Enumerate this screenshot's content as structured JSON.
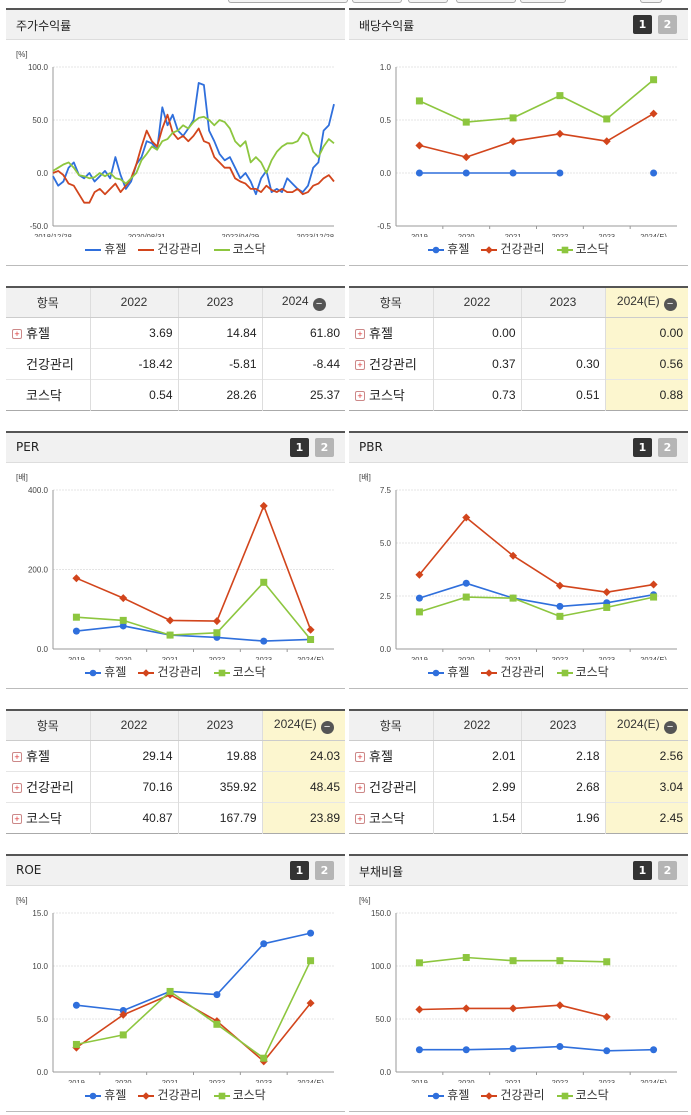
{
  "colors": {
    "휴젤": "#2f6fdc",
    "건강관리": "#d2451c",
    "코스닥": "#8dc63f"
  },
  "legend": [
    "휴젤",
    "건강관리",
    "코스닥"
  ],
  "buttons": [
    "1",
    "2"
  ],
  "stock": {
    "title": "주가수익률",
    "chart_data": {
      "type": "line",
      "ylabel": "[%]",
      "ylim": [
        -50,
        100
      ],
      "yticks": [
        "100.0",
        "50.0",
        "0.0",
        "-50.0"
      ],
      "xticks": [
        "2018/12/28",
        "2020/08/31",
        "2022/04/29",
        "2023/12/28"
      ],
      "series": [
        {
          "name": "휴젤",
          "values": [
            -3,
            -12,
            -8,
            5,
            10,
            -2,
            -5,
            0,
            -8,
            -3,
            2,
            -5,
            15,
            -2,
            -15,
            -8,
            8,
            15,
            30,
            28,
            22,
            62,
            45,
            55,
            40,
            35,
            42,
            50,
            85,
            83,
            40,
            30,
            18,
            12,
            15,
            5,
            -5,
            0,
            -8,
            -20,
            -5,
            2,
            -18,
            -15,
            -18,
            -5,
            -10,
            -15,
            -18,
            -12,
            5,
            10,
            40,
            45,
            65
          ]
        },
        {
          "name": "건강관리",
          "values": [
            0,
            2,
            -2,
            -10,
            -12,
            -20,
            -28,
            -28,
            -18,
            -15,
            -20,
            -15,
            -10,
            -18,
            -12,
            -5,
            8,
            25,
            40,
            30,
            25,
            42,
            55,
            38,
            32,
            35,
            30,
            35,
            42,
            30,
            28,
            15,
            10,
            5,
            5,
            -5,
            -8,
            -10,
            -15,
            -15,
            -18,
            -12,
            -16,
            -18,
            -15,
            -18,
            -18,
            -15,
            -20,
            -18,
            -12,
            -10,
            -5,
            -2,
            -8
          ]
        },
        {
          "name": "코스닥",
          "values": [
            2,
            5,
            8,
            10,
            5,
            -2,
            -3,
            -5,
            -4,
            0,
            -3,
            0,
            -5,
            -6,
            -10,
            -5,
            0,
            12,
            18,
            25,
            22,
            30,
            32,
            38,
            40,
            45,
            42,
            48,
            52,
            53,
            50,
            45,
            50,
            48,
            42,
            30,
            25,
            30,
            10,
            15,
            10,
            0,
            12,
            20,
            25,
            28,
            28,
            30,
            38,
            35,
            20,
            15,
            25,
            32,
            28
          ]
        }
      ]
    }
  },
  "stock_table": {
    "header": [
      "항목",
      "2022",
      "2023",
      "2024"
    ],
    "rows": [
      {
        "name": "휴젤",
        "values": [
          "3.69",
          "14.84",
          "61.80"
        ],
        "plus": true
      },
      {
        "name": "건강관리",
        "values": [
          "-18.42",
          "-5.81",
          "-8.44"
        ],
        "plus": false
      },
      {
        "name": "코스닥",
        "values": [
          "0.54",
          "28.26",
          "25.37"
        ],
        "plus": false
      }
    ]
  },
  "dividend": {
    "title": "배당수익률",
    "chart_data": {
      "type": "line",
      "ylabel": "",
      "ylim": [
        -0.5,
        1.0
      ],
      "yticks": [
        "1.0",
        "0.5",
        "0.0",
        "-0.5"
      ],
      "categories": [
        "2019",
        "2020",
        "2021",
        "2022",
        "2023",
        "2024(E)"
      ],
      "series": [
        {
          "name": "휴젤",
          "values": [
            0.0,
            0.0,
            0.0,
            0.0,
            null,
            0.0
          ]
        },
        {
          "name": "건강관리",
          "values": [
            0.26,
            0.15,
            0.3,
            0.37,
            0.3,
            0.56
          ]
        },
        {
          "name": "코스닥",
          "values": [
            0.68,
            0.48,
            0.52,
            0.73,
            0.51,
            0.88
          ]
        }
      ]
    }
  },
  "dividend_table": {
    "header": [
      "항목",
      "2022",
      "2023",
      "2024(E)"
    ],
    "rows": [
      {
        "name": "휴젤",
        "values": [
          "0.00",
          "",
          "0.00"
        ],
        "plus": true
      },
      {
        "name": "건강관리",
        "values": [
          "0.37",
          "0.30",
          "0.56"
        ],
        "plus": true
      },
      {
        "name": "코스닥",
        "values": [
          "0.73",
          "0.51",
          "0.88"
        ],
        "plus": true
      }
    ]
  },
  "per": {
    "title": "PER",
    "chart_data": {
      "type": "line",
      "ylabel": "[배]",
      "ylim": [
        0,
        400
      ],
      "yticks": [
        "400.0",
        "200.0",
        "0.0"
      ],
      "categories": [
        "2019",
        "2020",
        "2021",
        "2022",
        "2023",
        "2024(E)"
      ],
      "series": [
        {
          "name": "휴젤",
          "values": [
            45,
            58,
            35,
            29.14,
            19.88,
            24.03
          ]
        },
        {
          "name": "건강관리",
          "values": [
            178,
            128,
            72,
            70.16,
            359.92,
            48.45
          ]
        },
        {
          "name": "코스닥",
          "values": [
            80,
            72,
            35,
            40.87,
            167.79,
            23.89
          ]
        }
      ]
    }
  },
  "per_table": {
    "header": [
      "항목",
      "2022",
      "2023",
      "2024(E)"
    ],
    "rows": [
      {
        "name": "휴젤",
        "values": [
          "29.14",
          "19.88",
          "24.03"
        ],
        "plus": true
      },
      {
        "name": "건강관리",
        "values": [
          "70.16",
          "359.92",
          "48.45"
        ],
        "plus": true
      },
      {
        "name": "코스닥",
        "values": [
          "40.87",
          "167.79",
          "23.89"
        ],
        "plus": true
      }
    ]
  },
  "pbr": {
    "title": "PBR",
    "chart_data": {
      "type": "line",
      "ylabel": "[배]",
      "ylim": [
        0,
        7.5
      ],
      "yticks": [
        "7.5",
        "5.0",
        "2.5",
        "0.0"
      ],
      "categories": [
        "2019",
        "2020",
        "2021",
        "2022",
        "2023",
        "2024(E)"
      ],
      "series": [
        {
          "name": "휴젤",
          "values": [
            2.4,
            3.1,
            2.4,
            2.01,
            2.18,
            2.56
          ]
        },
        {
          "name": "건강관리",
          "values": [
            3.5,
            6.2,
            4.4,
            2.99,
            2.68,
            3.04
          ]
        },
        {
          "name": "코스닥",
          "values": [
            1.75,
            2.45,
            2.4,
            1.54,
            1.96,
            2.45
          ]
        }
      ]
    }
  },
  "pbr_table": {
    "header": [
      "항목",
      "2022",
      "2023",
      "2024(E)"
    ],
    "rows": [
      {
        "name": "휴젤",
        "values": [
          "2.01",
          "2.18",
          "2.56"
        ],
        "plus": true
      },
      {
        "name": "건강관리",
        "values": [
          "2.99",
          "2.68",
          "3.04"
        ],
        "plus": true
      },
      {
        "name": "코스닥",
        "values": [
          "1.54",
          "1.96",
          "2.45"
        ],
        "plus": true
      }
    ]
  },
  "roe": {
    "title": "ROE",
    "chart_data": {
      "type": "line",
      "ylabel": "[%]",
      "ylim": [
        0,
        15
      ],
      "yticks": [
        "15.0",
        "10.0",
        "5.0",
        "0.0"
      ],
      "categories": [
        "2019",
        "2020",
        "2021",
        "2022",
        "2023",
        "2024(E)"
      ],
      "series": [
        {
          "name": "휴젤",
          "values": [
            6.3,
            5.8,
            7.6,
            7.3,
            12.1,
            13.1
          ]
        },
        {
          "name": "건강관리",
          "values": [
            2.3,
            5.4,
            7.3,
            4.8,
            1.0,
            6.5
          ]
        },
        {
          "name": "코스닥",
          "values": [
            2.6,
            3.5,
            7.6,
            4.5,
            1.3,
            10.5
          ]
        }
      ]
    }
  },
  "debt": {
    "title": "부채비율",
    "chart_data": {
      "type": "line",
      "ylabel": "[%]",
      "ylim": [
        0,
        150
      ],
      "yticks": [
        "150.0",
        "100.0",
        "50.0",
        "0.0"
      ],
      "categories": [
        "2019",
        "2020",
        "2021",
        "2022",
        "2023",
        "2024(E)"
      ],
      "series": [
        {
          "name": "휴젤",
          "values": [
            21,
            21,
            22,
            24,
            20,
            21
          ]
        },
        {
          "name": "건강관리",
          "values": [
            59,
            60,
            60,
            63,
            52,
            null
          ]
        },
        {
          "name": "코스닥",
          "values": [
            103,
            108,
            105,
            105,
            104,
            null
          ]
        }
      ]
    }
  }
}
